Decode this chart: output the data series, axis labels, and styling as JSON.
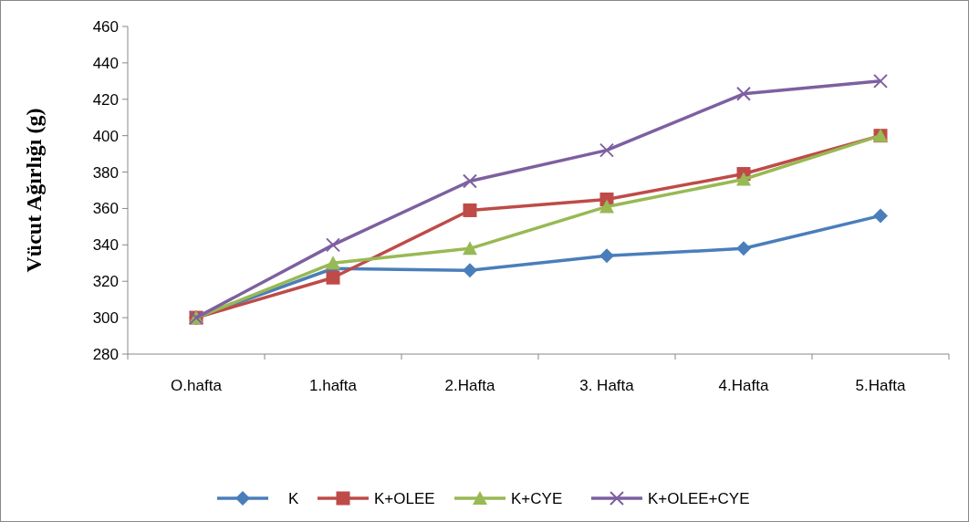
{
  "chart_data": {
    "type": "line",
    "ylabel": "Vücut Ağırlığı (g)",
    "categories": [
      "O.hafta",
      "1.hafta",
      "2.Hafta",
      "3. Hafta",
      "4.Hafta",
      "5.Hafta"
    ],
    "series": [
      {
        "name": "K",
        "color": "#4a7ebb",
        "marker": "diamond",
        "values": [
          300,
          327,
          326,
          334,
          338,
          356
        ]
      },
      {
        "name": "K+OLEE",
        "color": "#be4b48",
        "marker": "square",
        "values": [
          300,
          322,
          359,
          365,
          379,
          400
        ]
      },
      {
        "name": "K+CYE",
        "color": "#98b954",
        "marker": "triangle",
        "values": [
          300,
          330,
          338,
          361,
          376,
          400
        ]
      },
      {
        "name": "K+OLEE+CYE",
        "color": "#7d60a0",
        "marker": "cross",
        "values": [
          300,
          340,
          375,
          392,
          423,
          430
        ]
      }
    ],
    "ylim": [
      280,
      460
    ],
    "yticks": [
      280,
      300,
      320,
      340,
      360,
      380,
      400,
      420,
      440,
      460
    ],
    "grid": false,
    "legend": "bottom",
    "line_style": "solid"
  }
}
